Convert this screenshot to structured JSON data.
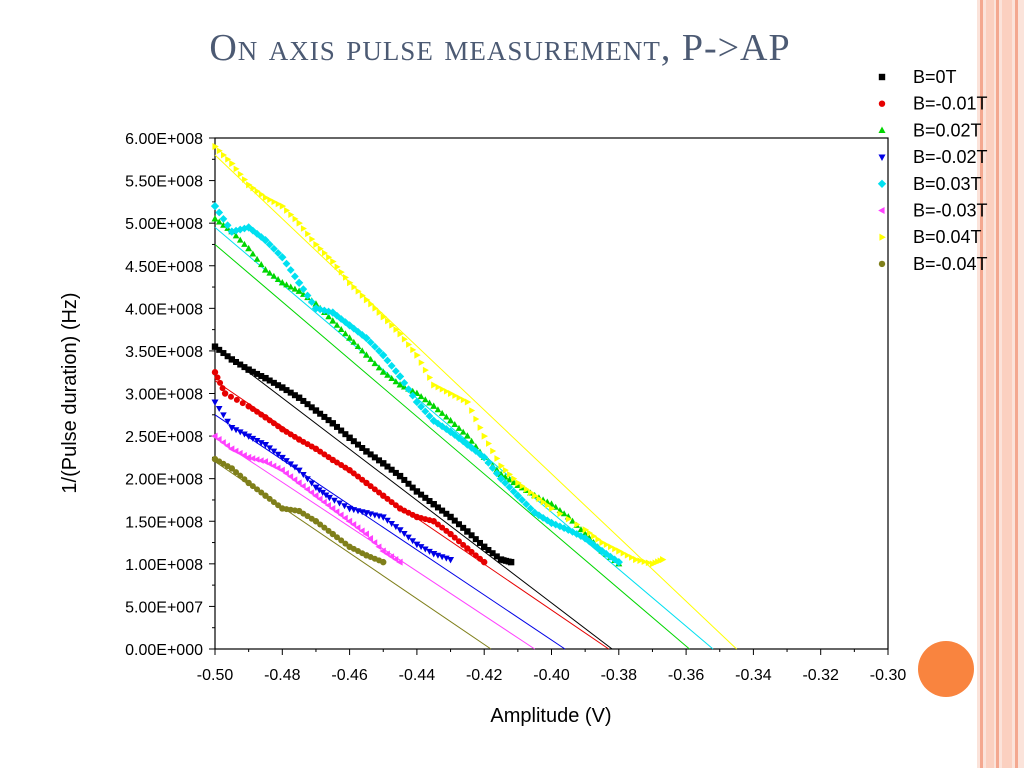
{
  "slide": {
    "title": "On axis pulse measurement, P->AP",
    "colors": {
      "title": "#4c5a73",
      "stripe_light": "#fbd9cf",
      "stripe_dark": "#f4a890",
      "accent_circle": "#f9843f"
    }
  },
  "chart_data": {
    "type": "scatter",
    "title": "",
    "xlabel": "Amplitude (V)",
    "ylabel": "1/(Pulse duration) (Hz)",
    "xlim": [
      -0.5,
      -0.3
    ],
    "ylim": [
      0,
      600000000
    ],
    "xticks": [
      -0.5,
      -0.48,
      -0.46,
      -0.44,
      -0.42,
      -0.4,
      -0.38,
      -0.36,
      -0.34,
      -0.32,
      -0.3
    ],
    "xtick_labels": [
      "-0.50",
      "-0.48",
      "-0.46",
      "-0.44",
      "-0.42",
      "-0.40",
      "-0.38",
      "-0.36",
      "-0.34",
      "-0.32",
      "-0.30"
    ],
    "yticks": [
      0,
      50000000,
      100000000,
      150000000,
      200000000,
      250000000,
      300000000,
      350000000,
      400000000,
      450000000,
      500000000,
      550000000,
      600000000
    ],
    "ytick_labels": [
      "0.00E+000",
      "5.00E+007",
      "1.00E+008",
      "1.50E+008",
      "2.00E+008",
      "2.50E+008",
      "3.00E+008",
      "3.50E+008",
      "4.00E+008",
      "4.50E+008",
      "5.00E+008",
      "5.50E+008",
      "6.00E+008"
    ],
    "grid": false,
    "legend_position": "top-right",
    "series": [
      {
        "name": "B=0T",
        "color": "#000000",
        "marker": "square",
        "points": [
          [
            -0.5,
            355000000
          ],
          [
            -0.495,
            340000000
          ],
          [
            -0.49,
            328000000
          ],
          [
            -0.485,
            318000000
          ],
          [
            -0.48,
            307000000
          ],
          [
            -0.475,
            295000000
          ],
          [
            -0.47,
            280000000
          ],
          [
            -0.465,
            265000000
          ],
          [
            -0.46,
            248000000
          ],
          [
            -0.455,
            232000000
          ],
          [
            -0.45,
            218000000
          ],
          [
            -0.445,
            203000000
          ],
          [
            -0.44,
            185000000
          ],
          [
            -0.435,
            170000000
          ],
          [
            -0.43,
            155000000
          ],
          [
            -0.425,
            138000000
          ],
          [
            -0.42,
            120000000
          ],
          [
            -0.415,
            105000000
          ],
          [
            -0.412,
            102000000
          ]
        ],
        "fit": [
          [
            -0.5,
            355000000
          ],
          [
            -0.382,
            0
          ]
        ]
      },
      {
        "name": "B=-0.01T",
        "color": "#e60000",
        "marker": "circle",
        "points": [
          [
            -0.5,
            325000000
          ],
          [
            -0.497,
            300000000
          ],
          [
            -0.49,
            285000000
          ],
          [
            -0.485,
            272000000
          ],
          [
            -0.48,
            258000000
          ],
          [
            -0.475,
            246000000
          ],
          [
            -0.47,
            235000000
          ],
          [
            -0.465,
            222000000
          ],
          [
            -0.46,
            210000000
          ],
          [
            -0.455,
            195000000
          ],
          [
            -0.45,
            180000000
          ],
          [
            -0.445,
            165000000
          ],
          [
            -0.44,
            155000000
          ],
          [
            -0.435,
            150000000
          ],
          [
            -0.43,
            135000000
          ],
          [
            -0.425,
            118000000
          ],
          [
            -0.42,
            102000000
          ]
        ],
        "fit": [
          [
            -0.5,
            315000000
          ],
          [
            -0.383,
            0
          ]
        ]
      },
      {
        "name": "B=0.02T",
        "color": "#00d600",
        "marker": "triangle-up",
        "points": [
          [
            -0.5,
            505000000
          ],
          [
            -0.495,
            490000000
          ],
          [
            -0.49,
            470000000
          ],
          [
            -0.485,
            445000000
          ],
          [
            -0.48,
            430000000
          ],
          [
            -0.475,
            420000000
          ],
          [
            -0.47,
            405000000
          ],
          [
            -0.465,
            385000000
          ],
          [
            -0.46,
            365000000
          ],
          [
            -0.455,
            345000000
          ],
          [
            -0.45,
            325000000
          ],
          [
            -0.445,
            310000000
          ],
          [
            -0.44,
            300000000
          ],
          [
            -0.435,
            285000000
          ],
          [
            -0.43,
            268000000
          ],
          [
            -0.425,
            250000000
          ],
          [
            -0.42,
            225000000
          ],
          [
            -0.415,
            205000000
          ],
          [
            -0.41,
            192000000
          ],
          [
            -0.405,
            180000000
          ],
          [
            -0.4,
            170000000
          ],
          [
            -0.395,
            155000000
          ],
          [
            -0.39,
            135000000
          ],
          [
            -0.385,
            115000000
          ],
          [
            -0.38,
            100000000
          ]
        ],
        "fit": [
          [
            -0.5,
            475000000
          ],
          [
            -0.359,
            0
          ]
        ]
      },
      {
        "name": "B=-0.02T",
        "color": "#0000e6",
        "marker": "triangle-down",
        "points": [
          [
            -0.5,
            290000000
          ],
          [
            -0.495,
            260000000
          ],
          [
            -0.49,
            250000000
          ],
          [
            -0.485,
            240000000
          ],
          [
            -0.48,
            225000000
          ],
          [
            -0.475,
            210000000
          ],
          [
            -0.47,
            190000000
          ],
          [
            -0.466,
            178000000
          ],
          [
            -0.46,
            165000000
          ],
          [
            -0.455,
            160000000
          ],
          [
            -0.45,
            155000000
          ],
          [
            -0.445,
            140000000
          ],
          [
            -0.44,
            123000000
          ],
          [
            -0.435,
            112000000
          ],
          [
            -0.43,
            105000000
          ]
        ],
        "fit": [
          [
            -0.5,
            275000000
          ],
          [
            -0.396,
            0
          ]
        ]
      },
      {
        "name": "B=0.03T",
        "color": "#00e0f0",
        "marker": "diamond",
        "points": [
          [
            -0.5,
            520000000
          ],
          [
            -0.495,
            490000000
          ],
          [
            -0.49,
            495000000
          ],
          [
            -0.485,
            480000000
          ],
          [
            -0.48,
            460000000
          ],
          [
            -0.475,
            430000000
          ],
          [
            -0.47,
            400000000
          ],
          [
            -0.465,
            395000000
          ],
          [
            -0.46,
            380000000
          ],
          [
            -0.455,
            365000000
          ],
          [
            -0.45,
            345000000
          ],
          [
            -0.445,
            320000000
          ],
          [
            -0.44,
            290000000
          ],
          [
            -0.435,
            268000000
          ],
          [
            -0.43,
            255000000
          ],
          [
            -0.425,
            240000000
          ],
          [
            -0.42,
            225000000
          ],
          [
            -0.415,
            200000000
          ],
          [
            -0.41,
            180000000
          ],
          [
            -0.405,
            160000000
          ],
          [
            -0.4,
            148000000
          ],
          [
            -0.395,
            140000000
          ],
          [
            -0.39,
            130000000
          ],
          [
            -0.385,
            115000000
          ],
          [
            -0.38,
            102000000
          ]
        ],
        "fit": [
          [
            -0.5,
            495000000
          ],
          [
            -0.352,
            0
          ]
        ]
      },
      {
        "name": "B=-0.03T",
        "color": "#ff40ff",
        "marker": "triangle-left",
        "points": [
          [
            -0.5,
            250000000
          ],
          [
            -0.495,
            235000000
          ],
          [
            -0.49,
            225000000
          ],
          [
            -0.485,
            220000000
          ],
          [
            -0.48,
            210000000
          ],
          [
            -0.475,
            195000000
          ],
          [
            -0.47,
            180000000
          ],
          [
            -0.465,
            165000000
          ],
          [
            -0.46,
            150000000
          ],
          [
            -0.455,
            135000000
          ],
          [
            -0.45,
            115000000
          ],
          [
            -0.445,
            102000000
          ]
        ],
        "fit": [
          [
            -0.5,
            248000000
          ],
          [
            -0.405,
            0
          ]
        ]
      },
      {
        "name": "B=0.04T",
        "color": "#ffff00",
        "marker": "triangle-right",
        "points": [
          [
            -0.5,
            590000000
          ],
          [
            -0.495,
            570000000
          ],
          [
            -0.49,
            545000000
          ],
          [
            -0.485,
            530000000
          ],
          [
            -0.48,
            520000000
          ],
          [
            -0.475,
            500000000
          ],
          [
            -0.47,
            475000000
          ],
          [
            -0.465,
            455000000
          ],
          [
            -0.46,
            430000000
          ],
          [
            -0.455,
            410000000
          ],
          [
            -0.45,
            390000000
          ],
          [
            -0.445,
            370000000
          ],
          [
            -0.44,
            345000000
          ],
          [
            -0.435,
            310000000
          ],
          [
            -0.43,
            300000000
          ],
          [
            -0.425,
            290000000
          ],
          [
            -0.42,
            250000000
          ],
          [
            -0.415,
            215000000
          ],
          [
            -0.41,
            195000000
          ],
          [
            -0.405,
            180000000
          ],
          [
            -0.4,
            165000000
          ],
          [
            -0.39,
            140000000
          ],
          [
            -0.385,
            125000000
          ],
          [
            -0.38,
            115000000
          ],
          [
            -0.375,
            105000000
          ],
          [
            -0.37,
            100000000
          ],
          [
            -0.367,
            105000000
          ]
        ],
        "fit": [
          [
            -0.5,
            580000000
          ],
          [
            -0.345,
            0
          ]
        ]
      },
      {
        "name": "B=-0.04T",
        "color": "#7f7f1a",
        "marker": "circle",
        "points": [
          [
            -0.5,
            223000000
          ],
          [
            -0.495,
            212000000
          ],
          [
            -0.49,
            195000000
          ],
          [
            -0.485,
            180000000
          ],
          [
            -0.48,
            165000000
          ],
          [
            -0.475,
            162000000
          ],
          [
            -0.47,
            150000000
          ],
          [
            -0.465,
            135000000
          ],
          [
            -0.46,
            120000000
          ],
          [
            -0.455,
            110000000
          ],
          [
            -0.45,
            102000000
          ]
        ],
        "fit": [
          [
            -0.5,
            220000000
          ],
          [
            -0.418,
            0
          ]
        ]
      }
    ]
  }
}
